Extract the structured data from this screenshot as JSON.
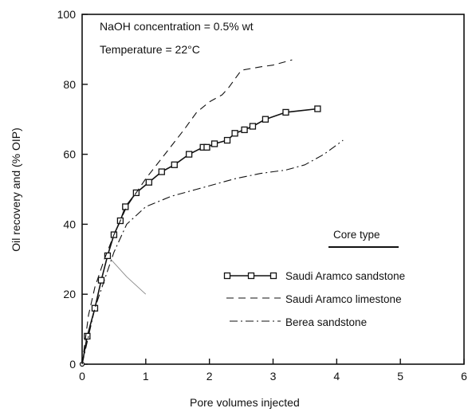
{
  "chart_data": {
    "type": "line",
    "xlabel": "Pore volumes injected",
    "ylabel": "Oil recovery and (% OIP)",
    "xlim": [
      0,
      6
    ],
    "ylim": [
      0,
      100
    ],
    "x_ticks": [
      "0",
      "1",
      "2",
      "3",
      "4",
      "5",
      "6"
    ],
    "y_ticks": [
      "0",
      "20",
      "40",
      "60",
      "80",
      "100"
    ],
    "grid": false,
    "annotations": [
      "NaOH concentration = 0.5% wt",
      "Temperature = 22°C"
    ],
    "legend": {
      "title": "Core type",
      "placement": "right-center",
      "entries": [
        "Saudi Aramco sandstone",
        "Saudi Aramco limestone",
        "Berea sandstone"
      ]
    },
    "series": [
      {
        "name": "Saudi Aramco sandstone",
        "style": "solid-square-markers",
        "color": "#111111",
        "x": [
          0,
          0.08,
          0.2,
          0.3,
          0.4,
          0.5,
          0.6,
          0.68,
          0.85,
          1.05,
          1.25,
          1.45,
          1.68,
          1.9,
          1.96,
          2.08,
          2.28,
          2.4,
          2.55,
          2.68,
          2.88,
          3.2,
          3.7
        ],
        "y": [
          0,
          8,
          16,
          24,
          31,
          37,
          41,
          45,
          49,
          52,
          55,
          57,
          60,
          62,
          62,
          63,
          64,
          66,
          67,
          68,
          70,
          72,
          73
        ]
      },
      {
        "name": "Saudi Aramco limestone",
        "style": "dashed",
        "color": "#111111",
        "x": [
          0,
          0.1,
          0.2,
          0.35,
          0.5,
          0.7,
          1.0,
          1.3,
          1.6,
          1.8,
          2.0,
          2.2,
          2.3,
          2.5,
          2.8,
          3.0,
          3.3
        ],
        "y": [
          0,
          14,
          22,
          30,
          37,
          45,
          53,
          60,
          67,
          72,
          75,
          77,
          79,
          84,
          85,
          85.5,
          87
        ]
      },
      {
        "name": "Berea sandstone",
        "style": "dash-dot",
        "color": "#111111",
        "x": [
          0,
          0.1,
          0.2,
          0.35,
          0.5,
          0.7,
          1.0,
          1.4,
          1.8,
          2.0,
          2.4,
          2.8,
          3.0,
          3.2,
          3.5,
          3.8,
          4.1
        ],
        "y": [
          0,
          8,
          16,
          24,
          32,
          40,
          45,
          48,
          50,
          51,
          53,
          54.5,
          55,
          55.5,
          57,
          60,
          64
        ]
      },
      {
        "style": "thin-gray",
        "color": "#888888",
        "x": [
          0.45,
          0.7,
          1.0
        ],
        "y": [
          30,
          25,
          20
        ]
      }
    ]
  }
}
